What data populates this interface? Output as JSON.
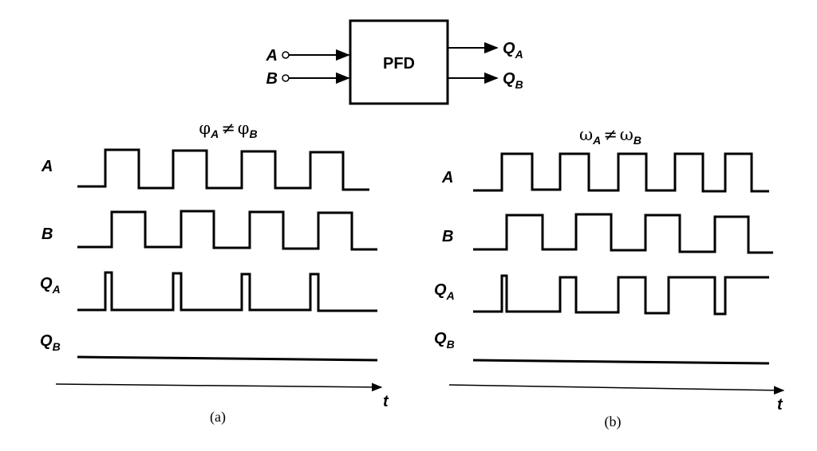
{
  "block": {
    "label": "PFD",
    "input_a": "A",
    "input_b": "B",
    "output_qa": "Q",
    "output_qa_sub": "A",
    "output_qb": "Q",
    "output_qb_sub": "B"
  },
  "panel_a": {
    "title_left": "φ",
    "title_left_sub": "A",
    "title_op": "≠",
    "title_right": "φ",
    "title_right_sub": "B",
    "caption": "(a)",
    "axis_label": "t",
    "signals": [
      {
        "name": "A",
        "sub": ""
      },
      {
        "name": "B",
        "sub": ""
      },
      {
        "name": "Q",
        "sub": "A"
      },
      {
        "name": "Q",
        "sub": "B"
      }
    ]
  },
  "panel_b": {
    "title_left": "ω",
    "title_left_sub": "A",
    "title_op": "≠",
    "title_right": "ω",
    "title_right_sub": "B",
    "caption": "(b)",
    "axis_label": "t",
    "signals": [
      {
        "name": "A",
        "sub": ""
      },
      {
        "name": "B",
        "sub": ""
      },
      {
        "name": "Q",
        "sub": "A"
      },
      {
        "name": "Q",
        "sub": "B"
      }
    ]
  }
}
